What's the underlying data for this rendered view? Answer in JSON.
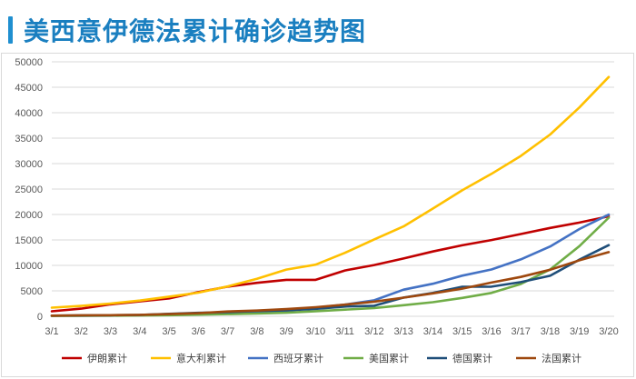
{
  "header": {
    "title": "美西意伊德法累计确诊趋势图",
    "accent_color": "#1f8fd0"
  },
  "chart_data": {
    "type": "line",
    "title": "美西意伊德法累计确诊趋势图",
    "xlabel": "",
    "ylabel": "",
    "ylim": [
      0,
      50000
    ],
    "y_ticks": [
      0,
      5000,
      10000,
      15000,
      20000,
      25000,
      30000,
      35000,
      40000,
      45000,
      50000
    ],
    "grid": true,
    "legend_position": "bottom",
    "categories": [
      "3/1",
      "3/2",
      "3/3",
      "3/4",
      "3/5",
      "3/6",
      "3/7",
      "3/8",
      "3/9",
      "3/10",
      "3/11",
      "3/12",
      "3/13",
      "3/14",
      "3/15",
      "3/16",
      "3/17",
      "3/18",
      "3/19",
      "3/20"
    ],
    "series": [
      {
        "name": "伊朗累计",
        "color": "#c00000",
        "values": [
          978,
          1501,
          2336,
          2922,
          3513,
          4747,
          5823,
          6566,
          7161,
          7161,
          9000,
          10075,
          11364,
          12729,
          13938,
          14991,
          16169,
          17361,
          18407,
          19644
        ]
      },
      {
        "name": "意大利累计",
        "color": "#ffc000",
        "values": [
          1694,
          2036,
          2502,
          3089,
          3858,
          4636,
          5883,
          7375,
          9172,
          10149,
          12462,
          15113,
          17660,
          21157,
          24747,
          27980,
          31506,
          35713,
          41035,
          47021
        ]
      },
      {
        "name": "西班牙累计",
        "color": "#4472c4",
        "values": [
          84,
          120,
          165,
          222,
          259,
          400,
          500,
          673,
          1073,
          1695,
          2277,
          3146,
          5232,
          6391,
          7988,
          9191,
          11178,
          13716,
          17147,
          19980
        ]
      },
      {
        "name": "美国累计",
        "color": "#70ad47",
        "values": [
          75,
          100,
          124,
          158,
          221,
          319,
          435,
          541,
          704,
          994,
          1301,
          1630,
          2183,
          2770,
          3613,
          4596,
          6344,
          9197,
          13779,
          19383
        ]
      },
      {
        "name": "德国累计",
        "color": "#1f4e79",
        "values": [
          130,
          159,
          196,
          262,
          482,
          670,
          799,
          1040,
          1176,
          1457,
          1908,
          2078,
          3675,
          4585,
          5795,
          5813,
          6708,
          7956,
          11128,
          13979
        ]
      },
      {
        "name": "法国累计",
        "color": "#9e480e",
        "values": [
          130,
          191,
          212,
          285,
          423,
          613,
          949,
          1126,
          1412,
          1784,
          2281,
          2876,
          3661,
          4499,
          5423,
          6633,
          7730,
          9134,
          10995,
          12612
        ]
      }
    ]
  }
}
